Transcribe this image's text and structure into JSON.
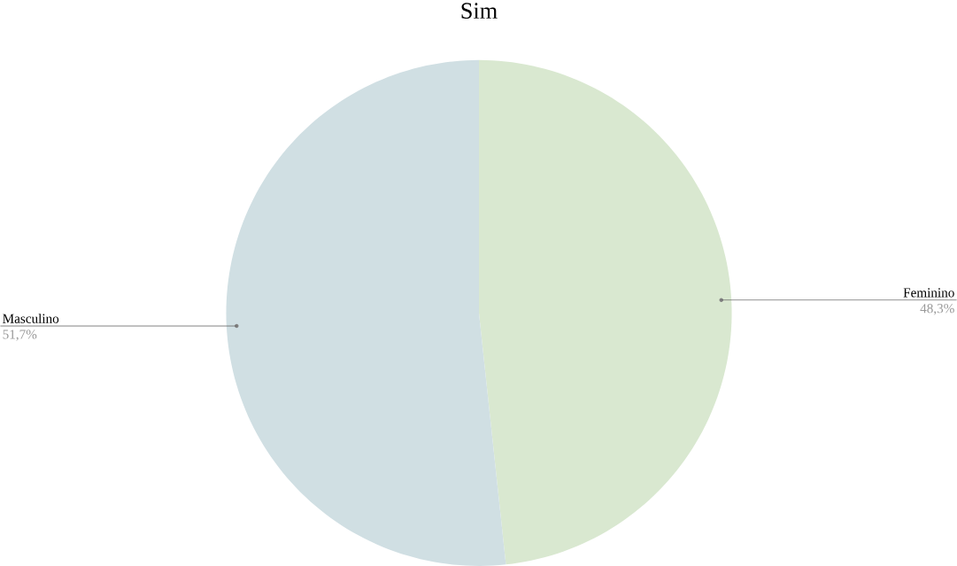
{
  "chart_data": {
    "type": "pie",
    "title": "Sim",
    "categories": [
      "Feminino",
      "Masculino"
    ],
    "values": [
      48.3,
      51.7
    ],
    "value_labels": [
      "48,3%",
      "51,7%"
    ],
    "colors": [
      "#d9e8d0",
      "#d0dfe3"
    ]
  }
}
